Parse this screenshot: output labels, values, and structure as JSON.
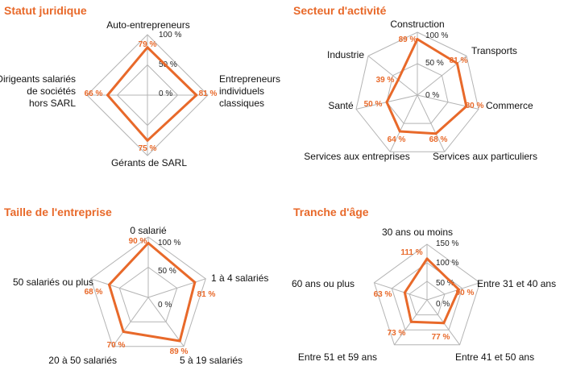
{
  "colors": {
    "accent": "#e8692a",
    "grid": "#b4b4b4"
  },
  "chart_data": [
    {
      "type": "radar",
      "title": "Statut juridique",
      "categories": [
        "Auto-entrepreneurs",
        "Entrepreneurs individuels classiques",
        "Gérants de SARL",
        "Dirigeants salariés de sociétés hors SARL"
      ],
      "values": [
        79,
        81,
        75,
        66
      ],
      "value_labels": [
        "79 %",
        "81 %",
        "75 %",
        "66 %"
      ],
      "rmax": 100,
      "ticks": [
        0,
        50,
        100
      ],
      "tick_labels": [
        "0 %",
        "50 %",
        "100 %"
      ]
    },
    {
      "type": "radar",
      "title": "Secteur d'activité",
      "categories": [
        "Construction",
        "Transports",
        "Commerce",
        "Services aux particuliers",
        "Services aux entreprises",
        "Santé",
        "Industrie"
      ],
      "values": [
        89,
        81,
        80,
        68,
        64,
        50,
        39
      ],
      "value_labels": [
        "89 %",
        "81 %",
        "80 %",
        "68 %",
        "64 %",
        "50 %",
        "39 %"
      ],
      "rmax": 100,
      "ticks": [
        0,
        50,
        100
      ],
      "tick_labels": [
        "0 %",
        "50 %",
        "100 %"
      ]
    },
    {
      "type": "radar",
      "title": "Taille de l'entreprise",
      "categories": [
        "0 salarié",
        "1 à 4 salariés",
        "5 à 19 salariés",
        "20 à 50 salariés",
        "50 salariés ou plus"
      ],
      "values": [
        90,
        81,
        89,
        70,
        68
      ],
      "value_labels": [
        "90 %",
        "81 %",
        "89 %",
        "70 %",
        "68 %"
      ],
      "rmax": 100,
      "ticks": [
        0,
        50,
        100
      ],
      "tick_labels": [
        "0 %",
        "50 %",
        "100 %"
      ]
    },
    {
      "type": "radar",
      "title": "Tranche d'âge",
      "categories": [
        "30 ans ou moins",
        "Entre 31 et 40 ans",
        "Entre 41 et 50 ans",
        "Entre 51 et 59 ans",
        "60 ans ou plus"
      ],
      "values": [
        111,
        90,
        77,
        73,
        63
      ],
      "value_labels": [
        "111 %",
        "90 %",
        "77 %",
        "73 %",
        "63 %"
      ],
      "rmax": 150,
      "ticks": [
        0,
        50,
        100,
        150
      ],
      "tick_labels": [
        "0 %",
        "50 %",
        "100 %",
        "150 %"
      ]
    }
  ]
}
